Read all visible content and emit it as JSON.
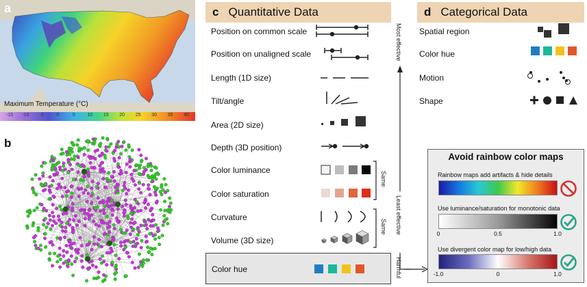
{
  "panel_a": {
    "letter": "a",
    "map_title": "Maximum Temperature (°C)",
    "scale_ticks": [
      "-15",
      "-10",
      "-5",
      "0",
      "5",
      "10",
      "15",
      "20",
      "25",
      "30",
      "35",
      "40"
    ]
  },
  "panel_b": {
    "letter": "b"
  },
  "panel_c": {
    "letter": "c",
    "title": "Quantitative Data",
    "rows": [
      "Position on common scale",
      "Position on unaligned scale",
      "Length (1D size)",
      "Tilt/angle",
      "Area (2D size)",
      "Depth (3D position)",
      "Color luminance",
      "Color saturation",
      "Curvature",
      "Volume (3D size)"
    ],
    "harmful_row": "Color hue",
    "most_effective": "Most effective",
    "least_effective": "Least effective",
    "same_1": "Same",
    "same_2": "Same",
    "harmful": "Harmful"
  },
  "panel_d": {
    "letter": "d",
    "title": "Categorical Data",
    "rows": [
      "Spatial region",
      "Color hue",
      "Motion",
      "Shape"
    ]
  },
  "avoid": {
    "title": "Avoid rainbow color maps",
    "line1": "Rainbow maps add artifacts & hide details",
    "line2": "Use luminance/saturation for monotonic data",
    "line3": "Use divergent color map for low/high data",
    "ticks_mono": [
      "0",
      "0.5",
      "1.0"
    ],
    "ticks_div": [
      "-1.0",
      "0",
      "1.0"
    ]
  },
  "colors": {
    "header_bg": "#eed4b2",
    "hue_blue": "#1f7ec1",
    "hue_teal": "#1bb89a",
    "hue_yellow": "#f2c21b",
    "hue_orange": "#e0582a",
    "check_green": "#2aa58a",
    "no_red": "#d0342c"
  }
}
